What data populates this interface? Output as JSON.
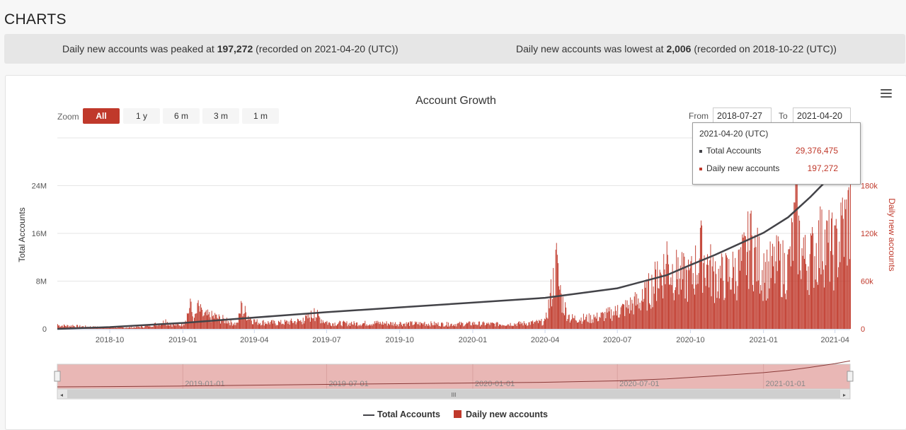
{
  "page": {
    "heading": "CHARTS"
  },
  "stats": {
    "peak_prefix": "Daily new accounts was peaked at ",
    "peak_value": "197,272",
    "peak_suffix": " (recorded on 2021-04-20 (UTC))",
    "low_prefix": "Daily new accounts was lowest at ",
    "low_value": "2,006",
    "low_suffix": " (recorded on 2018-10-22 (UTC))"
  },
  "toolbar": {
    "zoom_label": "Zoom",
    "zoom_options": [
      "All",
      "1 y",
      "6 m",
      "3 m",
      "1 m"
    ],
    "zoom_selected": "All",
    "from_label": "From",
    "from_value": "2018-07-27",
    "to_label": "To",
    "to_value": "2021-04-20",
    "menu_icon": "hamburger-menu-icon"
  },
  "tooltip": {
    "date": "2021-04-20 (UTC)",
    "total_label": "Total Accounts",
    "total_value": "29,376,475",
    "daily_label": "Daily new accounts",
    "daily_value": "197,272"
  },
  "colors": {
    "total": "#434348",
    "daily": "#c0392b",
    "navigator_fill": "#e9b7b5"
  },
  "chart_data": {
    "type": "line",
    "title": "Account Growth",
    "x_ticks": [
      "2018-10",
      "2019-01",
      "2019-04",
      "2019-07",
      "2019-10",
      "2020-01",
      "2020-04",
      "2020-07",
      "2020-10",
      "2021-01",
      "2021-04"
    ],
    "y_left": {
      "label": "Total Accounts",
      "ticks": [
        "0",
        "8M",
        "16M",
        "24M"
      ],
      "range": [
        0,
        32000000
      ]
    },
    "y_right": {
      "label": "Daily new accounts",
      "ticks": [
        "0",
        "60k",
        "120k",
        "180k"
      ],
      "range": [
        0,
        240000
      ]
    },
    "navigator_ticks": [
      "2019-01-01",
      "2019-07-01",
      "2020-01-01",
      "2020-07-01",
      "2021-01-01"
    ],
    "navigator_handle_label": "III",
    "x_range": [
      "2018-07-27",
      "2021-04-20"
    ],
    "series": [
      {
        "name": "Total Accounts",
        "type": "line",
        "axis": "left",
        "points": [
          [
            "2018-07-27",
            0
          ],
          [
            "2018-10-01",
            300000
          ],
          [
            "2019-01-01",
            1000000
          ],
          [
            "2019-04-01",
            1900000
          ],
          [
            "2019-07-01",
            2800000
          ],
          [
            "2019-10-01",
            3600000
          ],
          [
            "2020-01-01",
            4400000
          ],
          [
            "2020-04-01",
            5200000
          ],
          [
            "2020-07-01",
            6800000
          ],
          [
            "2020-09-01",
            9000000
          ],
          [
            "2020-10-01",
            10700000
          ],
          [
            "2020-11-01",
            12400000
          ],
          [
            "2021-01-01",
            16100000
          ],
          [
            "2021-02-01",
            18700000
          ],
          [
            "2021-03-01",
            22100000
          ],
          [
            "2021-04-01",
            26300000
          ],
          [
            "2021-04-20",
            29376475
          ]
        ]
      },
      {
        "name": "Daily new accounts",
        "type": "column",
        "axis": "right",
        "points": [
          [
            "2018-07-27",
            6000
          ],
          [
            "2018-08-15",
            5000
          ],
          [
            "2018-09-15",
            3000
          ],
          [
            "2018-10-22",
            2006
          ],
          [
            "2018-11-15",
            4000
          ],
          [
            "2018-12-10",
            12000
          ],
          [
            "2018-12-20",
            6000
          ],
          [
            "2019-01-01",
            8000
          ],
          [
            "2019-01-10",
            38000
          ],
          [
            "2019-01-15",
            14000
          ],
          [
            "2019-01-20",
            36000
          ],
          [
            "2019-01-25",
            24000
          ],
          [
            "2019-02-10",
            20000
          ],
          [
            "2019-02-25",
            14000
          ],
          [
            "2019-03-10",
            8000
          ],
          [
            "2019-03-15",
            35000
          ],
          [
            "2019-04-01",
            12000
          ],
          [
            "2019-05-01",
            10000
          ],
          [
            "2019-06-01",
            14000
          ],
          [
            "2019-06-15",
            26000
          ],
          [
            "2019-07-01",
            10000
          ],
          [
            "2019-08-01",
            9000
          ],
          [
            "2019-09-01",
            10000
          ],
          [
            "2019-10-01",
            9000
          ],
          [
            "2019-11-01",
            9000
          ],
          [
            "2019-12-01",
            8000
          ],
          [
            "2020-01-01",
            9000
          ],
          [
            "2020-02-01",
            8000
          ],
          [
            "2020-03-01",
            9000
          ],
          [
            "2020-04-01",
            12000
          ],
          [
            "2020-04-15",
            108000
          ],
          [
            "2020-04-20",
            55000
          ],
          [
            "2020-05-01",
            18000
          ],
          [
            "2020-06-01",
            18000
          ],
          [
            "2020-07-01",
            30000
          ],
          [
            "2020-08-01",
            50000
          ],
          [
            "2020-08-20",
            85000
          ],
          [
            "2020-09-01",
            110000
          ],
          [
            "2020-09-15",
            90000
          ],
          [
            "2020-10-01",
            85000
          ],
          [
            "2020-10-15",
            130000
          ],
          [
            "2020-11-01",
            85000
          ],
          [
            "2020-12-01",
            100000
          ],
          [
            "2020-12-15",
            145000
          ],
          [
            "2021-01-01",
            95000
          ],
          [
            "2021-01-20",
            110000
          ],
          [
            "2021-02-01",
            100000
          ],
          [
            "2021-02-10",
            185000
          ],
          [
            "2021-02-20",
            115000
          ],
          [
            "2021-03-01",
            120000
          ],
          [
            "2021-03-15",
            150000
          ],
          [
            "2021-04-01",
            130000
          ],
          [
            "2021-04-10",
            165000
          ],
          [
            "2021-04-20",
            197272
          ]
        ]
      }
    ],
    "legend": {
      "position": "bottom-center",
      "items": [
        "Total Accounts",
        "Daily new accounts"
      ]
    },
    "grid": true
  }
}
